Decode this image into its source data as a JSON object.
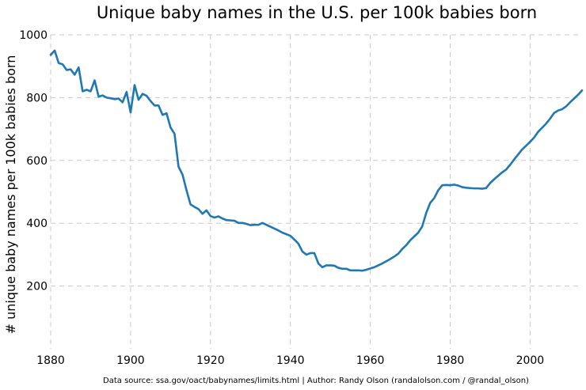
{
  "chart_data": {
    "type": "line",
    "title": "Unique baby names in the U.S. per 100k babies born",
    "xlabel": "",
    "ylabel": "# unique baby names per 100k babies born",
    "source_note": "Data source: ssa.gov/oact/babynames/limits.html | Author: Randy Olson (randalolson.com / @randal_olson)",
    "xlim": [
      1880,
      2013
    ],
    "ylim": [
      0,
      1000
    ],
    "x_ticks": [
      1880,
      1900,
      1920,
      1940,
      1960,
      1980,
      2000
    ],
    "y_ticks": [
      200,
      400,
      600,
      800,
      1000
    ],
    "grid": true,
    "color": "#1f77b4",
    "x": [
      1880,
      1881,
      1882,
      1883,
      1884,
      1885,
      1886,
      1887,
      1888,
      1889,
      1890,
      1891,
      1892,
      1893,
      1894,
      1895,
      1896,
      1897,
      1898,
      1899,
      1900,
      1901,
      1902,
      1903,
      1904,
      1905,
      1906,
      1907,
      1908,
      1909,
      1910,
      1911,
      1912,
      1913,
      1914,
      1915,
      1916,
      1917,
      1918,
      1919,
      1920,
      1921,
      1922,
      1923,
      1924,
      1925,
      1926,
      1927,
      1928,
      1929,
      1930,
      1931,
      1932,
      1933,
      1934,
      1935,
      1936,
      1937,
      1938,
      1939,
      1940,
      1941,
      1942,
      1943,
      1944,
      1945,
      1946,
      1947,
      1948,
      1949,
      1950,
      1951,
      1952,
      1953,
      1954,
      1955,
      1956,
      1957,
      1958,
      1959,
      1960,
      1961,
      1962,
      1963,
      1964,
      1965,
      1966,
      1967,
      1968,
      1969,
      1970,
      1971,
      1972,
      1973,
      1974,
      1975,
      1976,
      1977,
      1978,
      1979,
      1980,
      1981,
      1982,
      1983,
      1984,
      1985,
      1986,
      1987,
      1988,
      1989,
      1990,
      1991,
      1992,
      1993,
      1994,
      1995,
      1996,
      1997,
      1998,
      1999,
      2000,
      2001,
      2002,
      2003,
      2004,
      2005,
      2006,
      2007,
      2008,
      2009,
      2010,
      2011,
      2012,
      2013
    ],
    "series": [
      {
        "values": [
          936,
          950,
          910,
          906,
          888,
          890,
          873,
          896,
          820,
          825,
          820,
          855,
          803,
          807,
          800,
          798,
          795,
          797,
          785,
          818,
          753,
          840,
          793,
          812,
          806,
          789,
          775,
          775,
          745,
          750,
          705,
          685,
          580,
          555,
          505,
          460,
          452,
          445,
          430,
          441,
          423,
          418,
          422,
          415,
          410,
          409,
          408,
          401,
          401,
          398,
          394,
          395,
          395,
          401,
          395,
          389,
          383,
          377,
          370,
          365,
          360,
          348,
          335,
          310,
          300,
          305,
          305,
          272,
          260,
          266,
          266,
          265,
          258,
          255,
          255,
          250,
          250,
          250,
          249,
          252,
          256,
          260,
          266,
          272,
          279,
          286,
          294,
          303,
          318,
          330,
          346,
          358,
          370,
          390,
          433,
          465,
          480,
          505,
          521,
          522,
          521,
          523,
          520,
          515,
          513,
          512,
          511,
          511,
          510,
          512,
          528,
          540,
          551,
          562,
          571,
          586,
          603,
          619,
          635,
          647,
          659,
          673,
          691,
          704,
          717,
          733,
          751,
          759,
          763,
          772,
          785,
          797,
          809,
          823
        ]
      }
    ]
  }
}
